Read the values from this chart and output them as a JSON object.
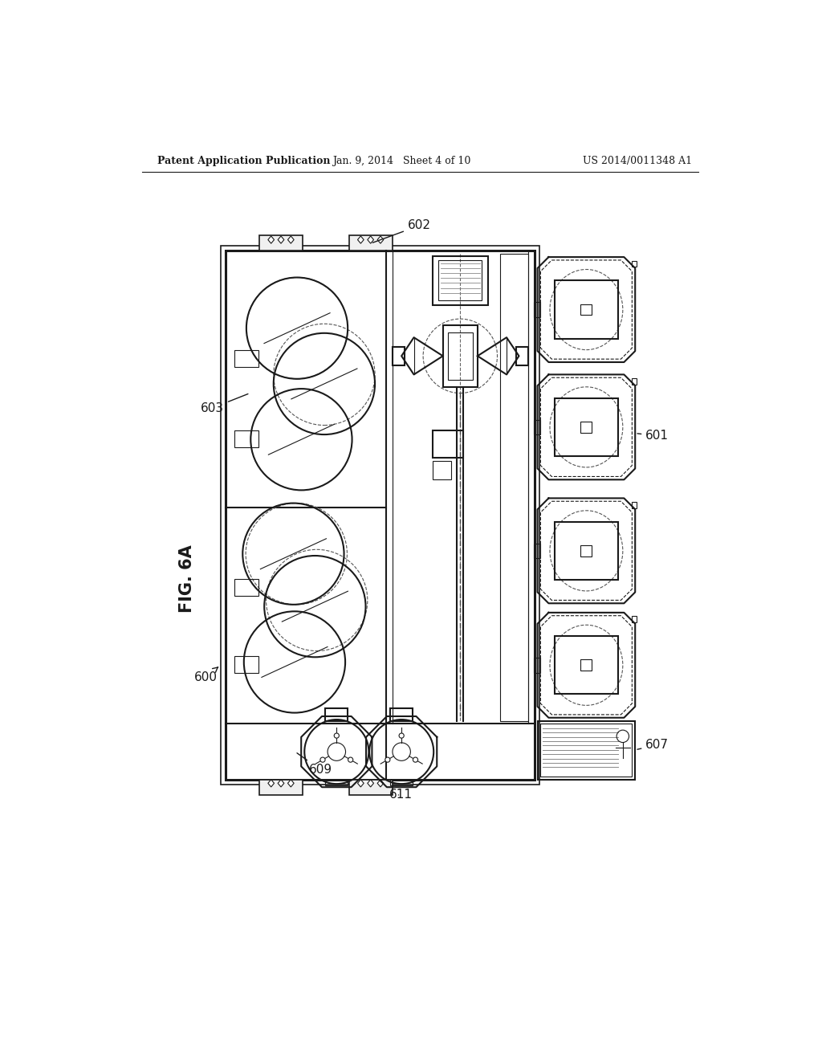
{
  "title_left": "Patent Application Publication",
  "title_mid": "Jan. 9, 2014   Sheet 4 of 10",
  "title_right": "US 2014/0011348 A1",
  "fig_label": "FIG. 6A",
  "bg_color": "#ffffff",
  "line_color": "#1a1a1a"
}
